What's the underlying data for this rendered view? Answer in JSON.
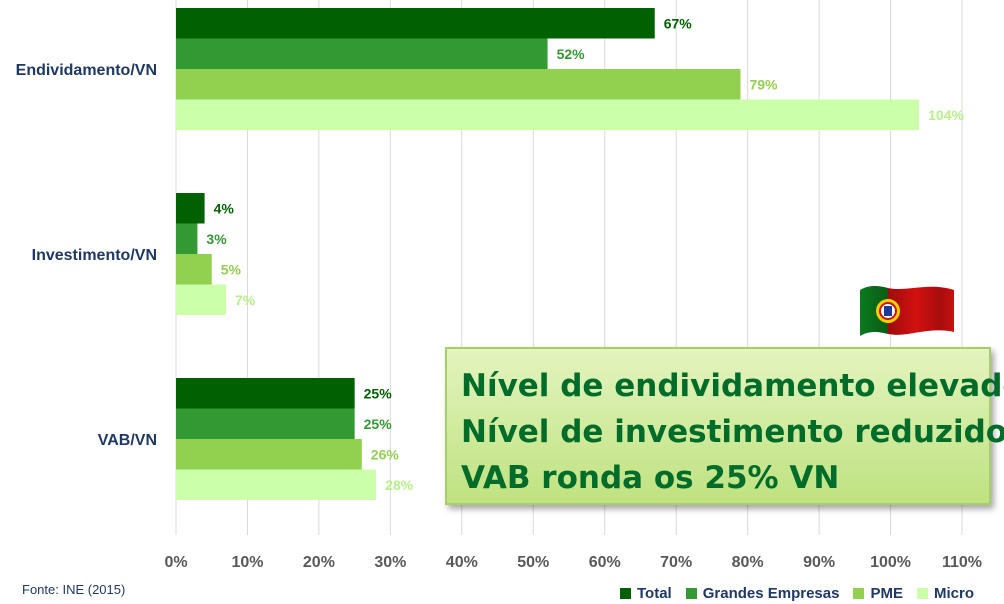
{
  "chart_data": {
    "type": "bar",
    "orientation": "horizontal",
    "categories": [
      "Endividamento/VN",
      "Investimento/VN",
      "VAB/VN"
    ],
    "series": [
      {
        "name": "Total",
        "color": "#006100",
        "values": [
          67,
          4,
          25
        ],
        "labels": [
          "67%",
          "4%",
          "25%"
        ]
      },
      {
        "name": "Grandes Empresas",
        "color": "#339933",
        "values": [
          52,
          3,
          25
        ],
        "labels": [
          "52%",
          "3%",
          "25%"
        ]
      },
      {
        "name": "PME",
        "color": "#92d050",
        "values": [
          79,
          5,
          26
        ],
        "labels": [
          "79%",
          "5%",
          "26%"
        ]
      },
      {
        "name": "Micro",
        "color": "#ccffaa",
        "values": [
          104,
          7,
          28
        ],
        "labels": [
          "104%",
          "7%",
          "28%"
        ]
      }
    ],
    "xlim": [
      0,
      110
    ],
    "x_ticks": [
      "0%",
      "10%",
      "20%",
      "30%",
      "40%",
      "50%",
      "60%",
      "70%",
      "80%",
      "90%",
      "100%",
      "110%"
    ],
    "grid": "vertical",
    "legend_position": "bottom-right"
  },
  "source": "Fonte: INE (2015)",
  "callout": {
    "lines": [
      "Nível de endividamento elevado",
      "Nível de investimento reduzido",
      "VAB ronda os 25% VN"
    ]
  },
  "flag_icon": "portugal-flag-icon"
}
